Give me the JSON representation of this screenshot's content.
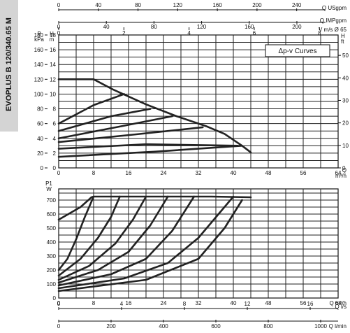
{
  "product_label": "EVOPLUS B 120/340.65 M",
  "chart_data": [
    {
      "type": "line",
      "title": "Δp-v Curves",
      "x_label": "Q m³/h",
      "x_ticks": [
        0,
        8,
        16,
        24,
        32,
        40,
        48,
        56,
        64
      ],
      "xlim": [
        0,
        64
      ],
      "y_label_left": "H m",
      "y_label_left2": "P kPa",
      "y_ticks_m": [
        0,
        2,
        4,
        6,
        8,
        10,
        12,
        14,
        16,
        18
      ],
      "y_ticks_kpa": [
        0,
        20,
        40,
        60,
        80,
        100,
        120,
        140,
        160,
        180
      ],
      "ylim_m": [
        0,
        18
      ],
      "y_label_right": "H ft",
      "y_ticks_ft": [
        0,
        10,
        20,
        30,
        40,
        50
      ],
      "top_axes": [
        {
          "label": "Q USgpm",
          "ticks": [
            0,
            40,
            80,
            120,
            160,
            200,
            240
          ]
        },
        {
          "label": "Q IMPgpm",
          "ticks": [
            0,
            40,
            80,
            120,
            160,
            200
          ]
        },
        {
          "label": "V m/s Ø 65",
          "ticks": [
            0,
            2,
            4,
            6,
            8
          ]
        }
      ],
      "max_curve": [
        [
          0,
          12
        ],
        [
          8,
          12
        ],
        [
          12.5,
          10.6
        ],
        [
          20,
          8.6
        ],
        [
          27,
          7
        ],
        [
          34,
          5.6
        ],
        [
          38,
          4.6
        ],
        [
          42,
          3
        ],
        [
          44,
          2.1
        ]
      ],
      "series": [
        {
          "values": [
            [
              0,
              6
            ],
            [
              8,
              8.5
            ],
            [
              15,
              10
            ]
          ]
        },
        {
          "values": [
            [
              0,
              5
            ],
            [
              12,
              7
            ],
            [
              21,
              8
            ]
          ]
        },
        {
          "values": [
            [
              0,
              4
            ],
            [
              14,
              5.6
            ],
            [
              26,
              7
            ]
          ]
        },
        {
          "values": [
            [
              0,
              3.5
            ],
            [
              17,
              4.5
            ],
            [
              33,
              5.5
            ]
          ]
        },
        {
          "values": [
            [
              0,
              2.6
            ],
            [
              20,
              3.2
            ],
            [
              41,
              3
            ]
          ]
        },
        {
          "values": [
            [
              0,
              1.5
            ],
            [
              22,
              2.2
            ],
            [
              42,
              3
            ]
          ]
        }
      ]
    },
    {
      "type": "line",
      "x_label": "Q m³/h",
      "x_ticks": [
        0,
        8,
        16,
        24,
        32,
        40,
        48,
        56,
        64
      ],
      "xlim": [
        0,
        64
      ],
      "y_label": "P1 W",
      "y_ticks": [
        0,
        100,
        200,
        300,
        400,
        500,
        600,
        700
      ],
      "ylim": [
        0,
        780
      ],
      "bottom_axes": [
        {
          "label": "Q l/s",
          "ticks": [
            0,
            4,
            8,
            12,
            16
          ]
        },
        {
          "label": "Q l/min",
          "ticks": [
            0,
            200,
            400,
            600,
            800,
            1000
          ]
        }
      ],
      "max_curve": [
        [
          0,
          560
        ],
        [
          5,
          650
        ],
        [
          7.5,
          720
        ],
        [
          8,
          725
        ],
        [
          20,
          725
        ],
        [
          35,
          725
        ],
        [
          44,
          720
        ]
      ],
      "series": [
        {
          "values": [
            [
              0,
              200
            ],
            [
              2,
              280
            ],
            [
              4,
              420
            ],
            [
              6,
              580
            ],
            [
              8,
              725
            ]
          ]
        },
        {
          "values": [
            [
              0,
              160
            ],
            [
              5,
              280
            ],
            [
              9,
              430
            ],
            [
              12,
              580
            ],
            [
              14,
              725
            ]
          ]
        },
        {
          "values": [
            [
              0,
              130
            ],
            [
              7,
              230
            ],
            [
              13,
              390
            ],
            [
              17,
              560
            ],
            [
              20,
              725
            ]
          ]
        },
        {
          "values": [
            [
              0,
              110
            ],
            [
              9,
              200
            ],
            [
              16,
              330
            ],
            [
              21,
              520
            ],
            [
              25,
              725
            ]
          ]
        },
        {
          "values": [
            [
              0,
              90
            ],
            [
              12,
              170
            ],
            [
              20,
              280
            ],
            [
              26,
              480
            ],
            [
              31,
              725
            ]
          ]
        },
        {
          "values": [
            [
              0,
              70
            ],
            [
              15,
              140
            ],
            [
              25,
              250
            ],
            [
              32,
              430
            ],
            [
              40,
              725
            ]
          ]
        },
        {
          "values": [
            [
              0,
              50
            ],
            [
              20,
              130
            ],
            [
              32,
              280
            ],
            [
              38,
              500
            ],
            [
              42,
              700
            ]
          ]
        }
      ]
    }
  ]
}
